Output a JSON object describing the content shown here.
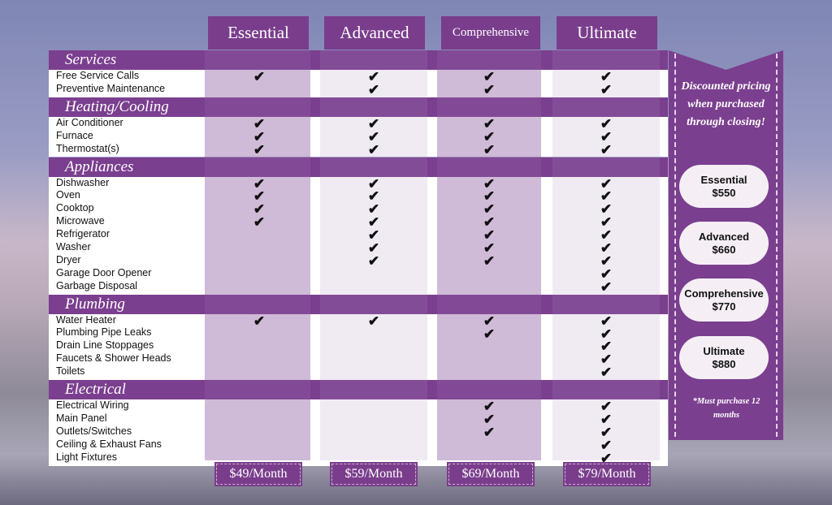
{
  "plans": [
    {
      "name": "Essential",
      "monthly": "$49/Month"
    },
    {
      "name": "Advanced",
      "monthly": "$59/Month"
    },
    {
      "name": "Comprehensive",
      "monthly": "$69/Month"
    },
    {
      "name": "Ultimate",
      "monthly": "$79/Month"
    }
  ],
  "check_icon": "checkmark-icon",
  "sections": [
    {
      "title": "Services",
      "items": [
        {
          "label": "Free Service Calls",
          "included": [
            "Essential",
            "Advanced",
            "Comprehensive",
            "Ultimate"
          ]
        },
        {
          "label": "Preventive Maintenance",
          "included": [
            "Advanced",
            "Comprehensive",
            "Ultimate"
          ]
        }
      ]
    },
    {
      "title": "Heating/Cooling",
      "items": [
        {
          "label": "Air Conditioner",
          "included": [
            "Essential",
            "Advanced",
            "Comprehensive",
            "Ultimate"
          ]
        },
        {
          "label": "Furnace",
          "included": [
            "Essential",
            "Advanced",
            "Comprehensive",
            "Ultimate"
          ]
        },
        {
          "label": "Thermostat(s)",
          "included": [
            "Essential",
            "Advanced",
            "Comprehensive",
            "Ultimate"
          ]
        }
      ]
    },
    {
      "title": "Appliances",
      "items": [
        {
          "label": "Dishwasher",
          "included": [
            "Essential",
            "Advanced",
            "Comprehensive",
            "Ultimate"
          ]
        },
        {
          "label": "Oven",
          "included": [
            "Essential",
            "Advanced",
            "Comprehensive",
            "Ultimate"
          ]
        },
        {
          "label": "Cooktop",
          "included": [
            "Essential",
            "Advanced",
            "Comprehensive",
            "Ultimate"
          ]
        },
        {
          "label": "Microwave",
          "included": [
            "Essential",
            "Advanced",
            "Comprehensive",
            "Ultimate"
          ]
        },
        {
          "label": "Refrigerator",
          "included": [
            "Advanced",
            "Comprehensive",
            "Ultimate"
          ]
        },
        {
          "label": "Washer",
          "included": [
            "Advanced",
            "Comprehensive",
            "Ultimate"
          ]
        },
        {
          "label": "Dryer",
          "included": [
            "Advanced",
            "Comprehensive",
            "Ultimate"
          ]
        },
        {
          "label": "Garage Door Opener",
          "included": [
            "Ultimate"
          ]
        },
        {
          "label": "Garbage Disposal",
          "included": [
            "Ultimate"
          ]
        }
      ]
    },
    {
      "title": "Plumbing",
      "items": [
        {
          "label": "Water Heater",
          "included": [
            "Essential",
            "Advanced",
            "Comprehensive",
            "Ultimate"
          ]
        },
        {
          "label": "Plumbing Pipe Leaks",
          "included": [
            "Comprehensive",
            "Ultimate"
          ]
        },
        {
          "label": "Drain Line Stoppages",
          "included": [
            "Ultimate"
          ]
        },
        {
          "label": "Faucets & Shower Heads",
          "included": [
            "Ultimate"
          ]
        },
        {
          "label": "Toilets",
          "included": [
            "Ultimate"
          ]
        }
      ]
    },
    {
      "title": "Electrical",
      "items": [
        {
          "label": "Electrical Wiring",
          "included": [
            "Comprehensive",
            "Ultimate"
          ]
        },
        {
          "label": "Main Panel",
          "included": [
            "Comprehensive",
            "Ultimate"
          ]
        },
        {
          "label": "Outlets/Switches",
          "included": [
            "Comprehensive",
            "Ultimate"
          ]
        },
        {
          "label": "Ceiling & Exhaust Fans",
          "included": [
            "Ultimate"
          ]
        },
        {
          "label": "Light Fixtures",
          "included": [
            "Ultimate"
          ]
        }
      ]
    }
  ],
  "promo": {
    "headline": "Discounted pricing when purchased through closing!",
    "prices": [
      {
        "plan": "Essential",
        "price": "$550"
      },
      {
        "plan": "Advanced",
        "price": "$660"
      },
      {
        "plan": "Comprehensive",
        "price": "$770"
      },
      {
        "plan": "Ultimate",
        "price": "$880"
      }
    ],
    "note": "*Must purchase 12 months"
  },
  "colors": {
    "brand_purple": "#7a3d8c"
  }
}
